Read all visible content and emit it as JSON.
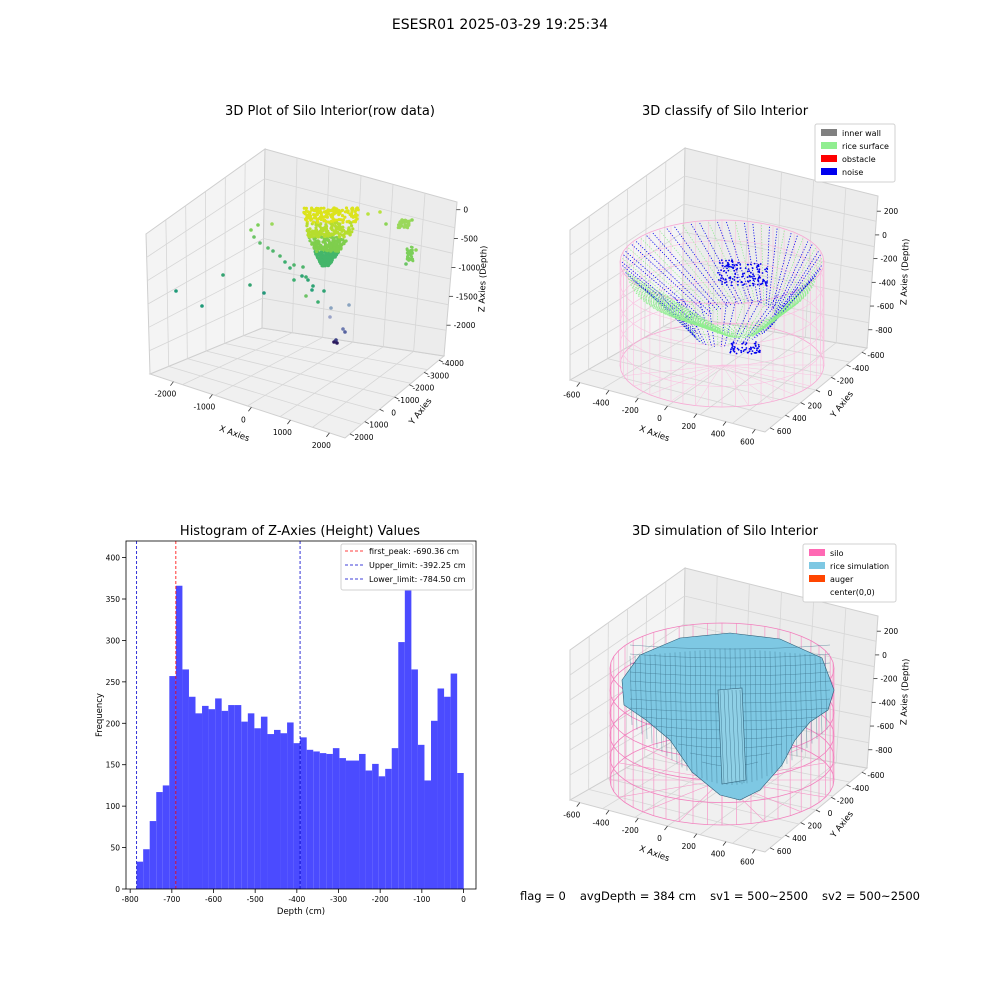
{
  "figure_title": "ESESR01 2025-03-29 19:25:34",
  "status": {
    "flag": "flag = 0",
    "avg_depth": "avgDepth = 384 cm",
    "sv1": "sv1 = 500~2500",
    "sv2": "sv2 = 500~2500"
  },
  "colors": {
    "hist_bar": "#4b4bff",
    "first_peak": "#ff0000",
    "limit": "#0000cc",
    "inner_wall": "#808080",
    "rice_surface": "#90ee90",
    "obstacle": "#ff0000",
    "noise": "#0000ee",
    "silo": "#ff69b4",
    "rice_simulation": "#7ec8e3",
    "auger": "#ff4500"
  },
  "chart_data": [
    {
      "type": "scatter3d",
      "title": "3D Plot of Silo Interior(row data)",
      "xlabel": "X Axies",
      "ylabel": "Y Axies",
      "zlabel": "Z Axies (Depth)",
      "xticks": [
        "-2000",
        "-1000",
        "0",
        "1000",
        "2000"
      ],
      "yticks": [
        "2000",
        "1000",
        "0",
        "-1000",
        "-2000",
        "-3000",
        "-4000"
      ],
      "zticks": [
        "0",
        "-500",
        "-1000",
        "-1500",
        "-2000"
      ]
    },
    {
      "type": "scatter3d",
      "title": "3D classify of Silo Interior",
      "xlabel": "X Axies",
      "ylabel": "Y Axies",
      "zlabel": "Z Axies (Depth)",
      "xticks": [
        "-600",
        "-400",
        "-200",
        "0",
        "200",
        "400",
        "600"
      ],
      "yticks": [
        "600",
        "400",
        "200",
        "0",
        "-200",
        "-400",
        "-600"
      ],
      "zticks": [
        "200",
        "0",
        "-200",
        "-400",
        "-600",
        "-800"
      ],
      "legend": [
        "inner wall",
        "rice surface",
        "obstacle",
        "noise"
      ],
      "legend_loc": "upper right"
    },
    {
      "type": "bar",
      "title": "Histogram of Z-Axies (Height) Values",
      "xlabel": "Depth (cm)",
      "ylabel": "Frequency",
      "xlim": [
        -810,
        30
      ],
      "ylim": [
        0,
        420
      ],
      "xticks": [
        -800,
        -700,
        -600,
        -500,
        -400,
        -300,
        -200,
        -100,
        0
      ],
      "yticks": [
        0,
        50,
        100,
        150,
        200,
        250,
        300,
        350,
        400
      ],
      "bin_edges_start": -784.5,
      "bin_width": 15.7,
      "values": [
        33,
        48,
        82,
        117,
        125,
        257,
        366,
        265,
        232,
        212,
        221,
        217,
        230,
        215,
        222,
        222,
        202,
        212,
        194,
        208,
        187,
        192,
        188,
        201,
        176,
        183,
        168,
        166,
        164,
        163,
        170,
        158,
        155,
        155,
        163,
        143,
        151,
        136,
        145,
        170,
        298,
        391,
        265,
        174,
        131,
        203,
        242,
        232,
        260,
        140
      ],
      "legend": [
        "first_peak: -690.36 cm",
        "Upper_limit: -392.25 cm",
        "Lower_limit: -784.50 cm"
      ],
      "legend_loc": "upper right",
      "lines": {
        "first_peak": -690.36,
        "upper_limit": -392.25,
        "lower_limit": -784.5
      }
    },
    {
      "type": "surface3d",
      "title": "3D simulation of Silo Interior",
      "xlabel": "X Axies",
      "ylabel": "Y Axies",
      "zlabel": "Z Axies (Depth)",
      "xticks": [
        "-600",
        "-400",
        "-200",
        "0",
        "200",
        "400",
        "600"
      ],
      "yticks": [
        "600",
        "400",
        "200",
        "0",
        "-200",
        "-400",
        "-600"
      ],
      "zticks": [
        "200",
        "0",
        "-200",
        "-400",
        "-600",
        "-800"
      ],
      "legend": [
        "silo",
        "rice simulation",
        "auger",
        "center(0,0)"
      ],
      "legend_loc": "upper right"
    }
  ]
}
